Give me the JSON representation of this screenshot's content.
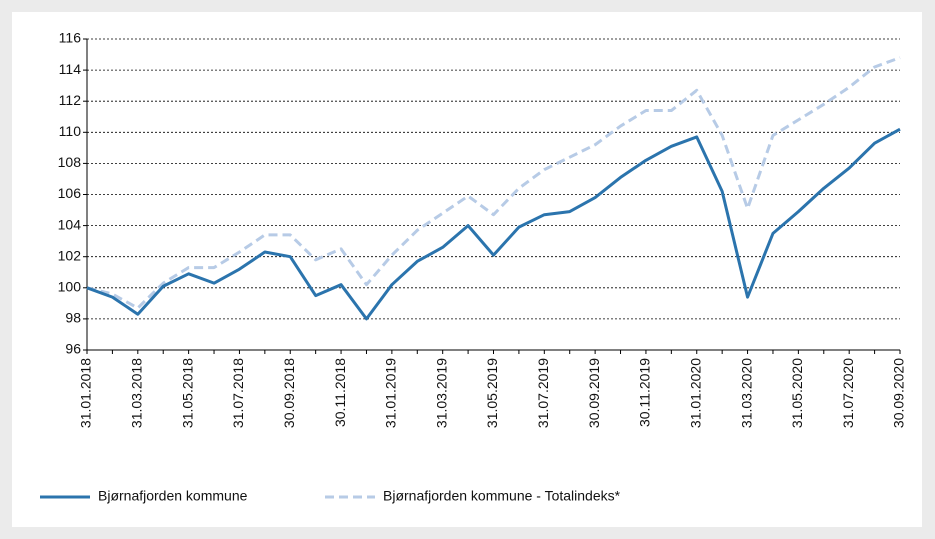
{
  "chart_data": {
    "type": "line",
    "categories": [
      "31.01.2018",
      null,
      "31.03.2018",
      null,
      "31.05.2018",
      null,
      "31.07.2018",
      null,
      "30.09.2018",
      null,
      "30.11.2018",
      null,
      "31.01.2019",
      null,
      "31.03.2019",
      null,
      "31.05.2019",
      null,
      "31.07.2019",
      null,
      "30.09.2019",
      null,
      "30.11.2019",
      null,
      "31.01.2020",
      null,
      "31.03.2020",
      null,
      "31.05.2020",
      null,
      "31.07.2020",
      null,
      "30.09.2020"
    ],
    "series": [
      {
        "name": "Bjørnafjorden kommune",
        "color": "#2b74ad",
        "dashed": false,
        "values": [
          100,
          99.4,
          98.3,
          100.1,
          100.9,
          100.3,
          101.2,
          102.3,
          102.0,
          99.5,
          100.2,
          98.0,
          100.2,
          101.7,
          102.6,
          104.0,
          102.1,
          103.9,
          104.7,
          104.9,
          105.8,
          107.1,
          108.2,
          109.1,
          109.7,
          106.2,
          99.4,
          103.5,
          104.9,
          106.4,
          107.7,
          109.3,
          110.2
        ]
      },
      {
        "name": "Bjørnafjorden kommune - Totalindeks*",
        "color": "#b7cbe6",
        "dashed": true,
        "values": [
          100,
          99.6,
          98.7,
          100.3,
          101.3,
          101.3,
          102.3,
          103.4,
          103.4,
          101.8,
          102.5,
          100.2,
          102.1,
          103.7,
          104.8,
          105.9,
          104.7,
          106.4,
          107.6,
          108.4,
          109.2,
          110.4,
          111.4,
          111.4,
          112.7,
          109.8,
          105.1,
          109.8,
          110.8,
          111.8,
          112.9,
          114.2,
          114.8
        ]
      }
    ],
    "ylim": [
      96,
      116
    ],
    "yticks": [
      96,
      98,
      100,
      102,
      104,
      106,
      108,
      110,
      112,
      114,
      116
    ],
    "grid": true
  }
}
